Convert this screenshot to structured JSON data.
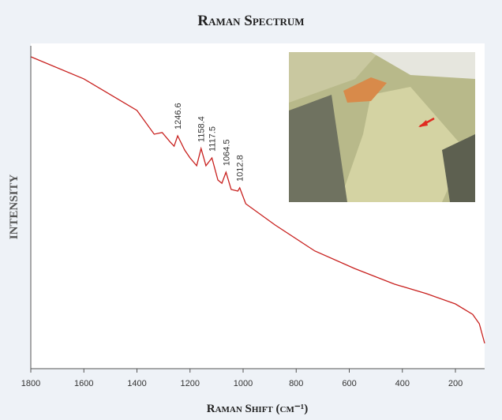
{
  "chart_data": {
    "type": "line",
    "title": "Raman Spectrum",
    "xlabel": "Raman Shift (cm⁻¹)",
    "ylabel": "INTENSITY",
    "x": [
      1800,
      1600,
      1400,
      1335,
      1305,
      1275,
      1260,
      1246.6,
      1220,
      1200,
      1175,
      1158.4,
      1140,
      1117.5,
      1095,
      1080,
      1064.5,
      1045,
      1020,
      1012.8,
      990,
      880,
      730,
      580,
      430,
      310,
      200,
      135,
      110,
      90
    ],
    "series": [
      {
        "name": "Raman spectrum",
        "color": "#c8201e",
        "values": [
          95.9,
          89.1,
          79.4,
          72.1,
          72.6,
          69.7,
          68.4,
          71.6,
          67.2,
          64.8,
          62.4,
          67.7,
          62.4,
          64.8,
          58.0,
          57.0,
          60.4,
          55.1,
          54.6,
          55.6,
          50.7,
          44.2,
          36.2,
          30.8,
          26.0,
          23.1,
          19.9,
          16.7,
          13.8,
          7.8
        ]
      }
    ],
    "xlim": [
      1800,
      90
    ],
    "ylim": [
      0,
      100
    ],
    "xticks": [
      1800,
      1600,
      1400,
      1200,
      1000,
      800,
      600,
      400,
      200
    ],
    "annotations": [
      {
        "label": "1246.6",
        "x": 1246.6
      },
      {
        "label": "1158.4",
        "x": 1158.4
      },
      {
        "label": "1117.5",
        "x": 1117.5
      },
      {
        "label": "1064.5",
        "x": 1064.5
      },
      {
        "label": "1012.8",
        "x": 1012.8
      }
    ]
  }
}
